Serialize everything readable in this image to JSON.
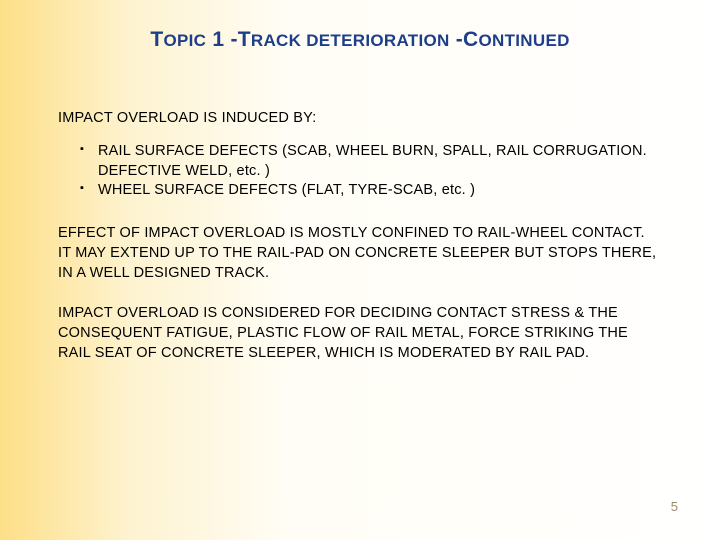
{
  "title_html": "T<span class=\"small\">OPIC</span> 1 -T<span class=\"small\">RACK DETERIORATION</span> -C<span class=\"small\">ONTINUED</span>",
  "section_label": "IMPACT OVERLOAD IS INDUCED BY:",
  "bullets": [
    "RAIL SURFACE DEFECTS (SCAB, WHEEL BURN, SPALL, RAIL CORRUGATION. DEFECTIVE WELD, etc. )",
    "WHEEL SURFACE DEFECTS (FLAT, TYRE-SCAB, etc. )"
  ],
  "paragraphs": [
    "EFFECT OF IMPACT OVERLOAD IS MOSTLY CONFINED TO RAIL-WHEEL CONTACT.  IT MAY EXTEND UP TO THE RAIL-PAD ON CONCRETE SLEEPER BUT STOPS THERE, IN A WELL DESIGNED TRACK.",
    "IMPACT OVERLOAD IS CONSIDERED FOR DECIDING CONTACT STRESS & THE CONSEQUENT FATIGUE, PLASTIC FLOW OF RAIL METAL, FORCE STRIKING THE RAIL SEAT OF CONCRETE SLEEPER, WHICH IS MODERATED BY RAIL PAD."
  ],
  "page_number": "5",
  "colors": {
    "title": "#1d3f8a",
    "text": "#000000",
    "pagenum": "#9a8a6a",
    "bg_gradient_start": "#fddf87",
    "bg_gradient_mid": "#fef3d0",
    "bg_gradient_end": "#ffffff"
  },
  "fonts": {
    "family": "Verdana",
    "title_size_pt": 16,
    "body_size_pt": 11
  }
}
